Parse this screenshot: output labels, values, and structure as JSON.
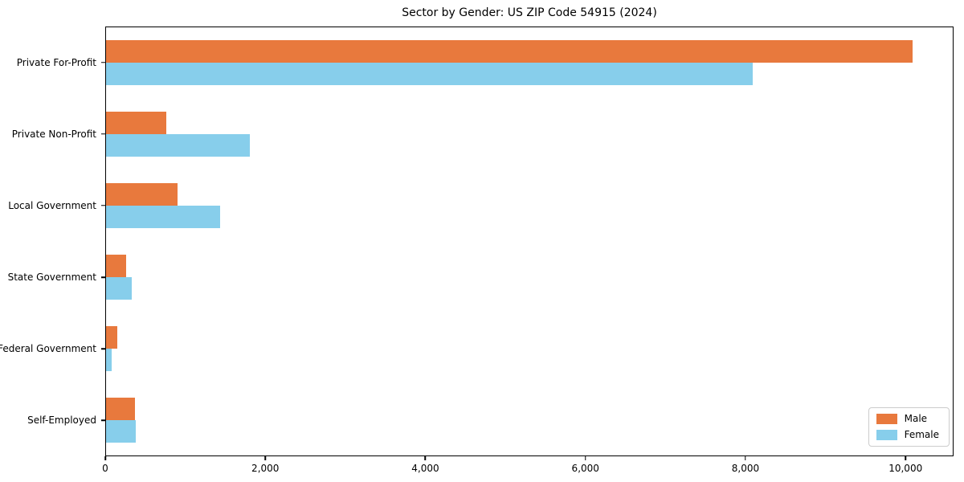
{
  "title": "Sector by Gender: US ZIP Code 54915 (2024)",
  "chart_data": {
    "type": "bar",
    "orientation": "horizontal",
    "title": "Sector by Gender: US ZIP Code 54915 (2024)",
    "xlabel": "",
    "ylabel": "",
    "categories": [
      "Private For-Profit",
      "Private Non-Profit",
      "Local Government",
      "State Government",
      "Federal Government",
      "Self-Employed"
    ],
    "series": [
      {
        "name": "Male",
        "color": "#e8793d",
        "values": [
          10100,
          750,
          900,
          250,
          140,
          360
        ]
      },
      {
        "name": "Female",
        "color": "#87ceeb",
        "values": [
          8100,
          1800,
          1430,
          325,
          75,
          370
        ]
      }
    ],
    "xlim": [
      0,
      10600
    ],
    "x_ticks": [
      0,
      2000,
      4000,
      6000,
      8000,
      10000
    ],
    "x_tick_labels": [
      "0",
      "2,000",
      "4,000",
      "6,000",
      "8,000",
      "10,000"
    ],
    "grid": false,
    "legend_position": "lower right",
    "background_color": "#ffffff",
    "frame_color": "#000000"
  }
}
